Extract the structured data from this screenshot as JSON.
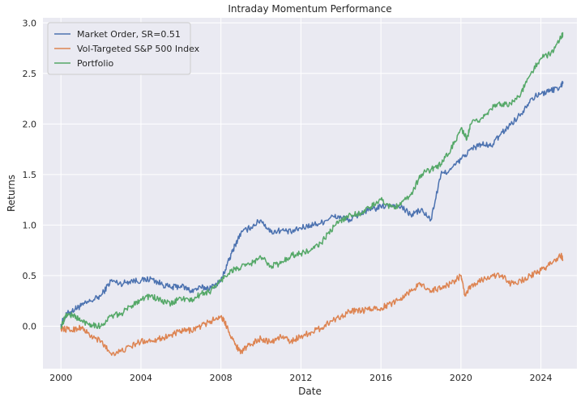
{
  "chart_data": {
    "type": "line",
    "title": "Intraday Momentum Performance",
    "xlabel": "Date",
    "ylabel": "Returns",
    "xlim": [
      1999.1,
      2025.8
    ],
    "ylim": [
      -0.42,
      3.05
    ],
    "x_ticks": [
      2000,
      2004,
      2008,
      2012,
      2016,
      2020,
      2024
    ],
    "x_tick_labels": [
      "2000",
      "2004",
      "2008",
      "2012",
      "2016",
      "2020",
      "2024"
    ],
    "y_ticks": [
      0.0,
      0.5,
      1.0,
      1.5,
      2.0,
      2.5,
      3.0
    ],
    "y_tick_labels": [
      "0.0",
      "0.5",
      "1.0",
      "1.5",
      "2.0",
      "2.5",
      "3.0"
    ],
    "grid": true,
    "legend_position": "top-left",
    "background": "#eaeaf2",
    "series": [
      {
        "name": "Market Order, SR=0.51",
        "color": "#4c72b0",
        "x": [
          2000.0,
          2000.3,
          2000.7,
          2001.0,
          2001.5,
          2002.0,
          2002.5,
          2003.0,
          2003.5,
          2004.0,
          2004.5,
          2005.0,
          2005.5,
          2006.0,
          2006.5,
          2007.0,
          2007.5,
          2008.0,
          2008.3,
          2008.7,
          2009.0,
          2009.5,
          2010.0,
          2010.5,
          2011.0,
          2011.5,
          2012.0,
          2012.5,
          2013.0,
          2013.5,
          2014.0,
          2014.5,
          2015.0,
          2015.5,
          2016.0,
          2016.5,
          2017.0,
          2017.5,
          2018.0,
          2018.5,
          2019.0,
          2019.5,
          2020.0,
          2020.5,
          2021.0,
          2021.5,
          2022.0,
          2022.5,
          2023.0,
          2023.5,
          2024.0,
          2024.5,
          2025.0,
          2025.1
        ],
        "y": [
          0.02,
          0.12,
          0.17,
          0.2,
          0.25,
          0.3,
          0.45,
          0.42,
          0.45,
          0.45,
          0.47,
          0.42,
          0.38,
          0.4,
          0.35,
          0.38,
          0.38,
          0.45,
          0.6,
          0.8,
          0.92,
          0.98,
          1.05,
          0.93,
          0.95,
          0.93,
          0.97,
          1.0,
          1.02,
          1.08,
          1.08,
          1.05,
          1.12,
          1.15,
          1.18,
          1.2,
          1.18,
          1.1,
          1.15,
          1.05,
          1.5,
          1.55,
          1.65,
          1.75,
          1.8,
          1.78,
          1.9,
          2.0,
          2.1,
          2.25,
          2.3,
          2.33,
          2.37,
          2.42
        ]
      },
      {
        "name": "Vol-Targeted S&P 500 Index",
        "color": "#dd8452",
        "x": [
          2000.0,
          2000.5,
          2001.0,
          2001.5,
          2002.0,
          2002.5,
          2003.0,
          2003.5,
          2004.0,
          2004.5,
          2005.0,
          2005.5,
          2006.0,
          2006.5,
          2007.0,
          2007.5,
          2008.0,
          2008.3,
          2008.7,
          2009.0,
          2009.5,
          2010.0,
          2010.5,
          2011.0,
          2011.5,
          2012.0,
          2012.5,
          2013.0,
          2013.5,
          2014.0,
          2014.5,
          2015.0,
          2015.5,
          2016.0,
          2016.5,
          2017.0,
          2017.5,
          2018.0,
          2018.5,
          2019.0,
          2019.5,
          2020.0,
          2020.2,
          2020.5,
          2021.0,
          2021.5,
          2022.0,
          2022.5,
          2023.0,
          2023.5,
          2024.0,
          2024.5,
          2025.0,
          2025.1
        ],
        "y": [
          -0.02,
          -0.04,
          -0.01,
          -0.1,
          -0.15,
          -0.27,
          -0.25,
          -0.2,
          -0.15,
          -0.14,
          -0.12,
          -0.09,
          -0.05,
          -0.04,
          0.0,
          0.05,
          0.1,
          0.0,
          -0.18,
          -0.25,
          -0.18,
          -0.12,
          -0.16,
          -0.1,
          -0.15,
          -0.1,
          -0.06,
          -0.02,
          0.05,
          0.1,
          0.15,
          0.15,
          0.17,
          0.18,
          0.22,
          0.28,
          0.35,
          0.42,
          0.35,
          0.38,
          0.42,
          0.5,
          0.3,
          0.4,
          0.45,
          0.5,
          0.5,
          0.42,
          0.45,
          0.5,
          0.55,
          0.62,
          0.7,
          0.66
        ]
      },
      {
        "name": "Portfolio",
        "color": "#55a868",
        "x": [
          2000.0,
          2000.3,
          2000.7,
          2001.0,
          2001.5,
          2002.0,
          2002.5,
          2003.0,
          2003.5,
          2004.0,
          2004.5,
          2005.0,
          2005.5,
          2006.0,
          2006.5,
          2007.0,
          2007.5,
          2008.0,
          2008.5,
          2009.0,
          2009.5,
          2010.0,
          2010.5,
          2011.0,
          2011.5,
          2012.0,
          2012.5,
          2013.0,
          2013.5,
          2014.0,
          2014.5,
          2015.0,
          2015.5,
          2016.0,
          2016.5,
          2017.0,
          2017.5,
          2018.0,
          2018.5,
          2019.0,
          2019.5,
          2020.0,
          2020.3,
          2020.5,
          2021.0,
          2021.5,
          2022.0,
          2022.5,
          2023.0,
          2023.5,
          2024.0,
          2024.5,
          2025.0,
          2025.1
        ],
        "y": [
          0.0,
          0.12,
          0.1,
          0.05,
          0.02,
          0.0,
          0.1,
          0.12,
          0.2,
          0.27,
          0.3,
          0.25,
          0.22,
          0.28,
          0.25,
          0.32,
          0.35,
          0.45,
          0.55,
          0.58,
          0.62,
          0.68,
          0.6,
          0.62,
          0.7,
          0.72,
          0.75,
          0.82,
          0.95,
          1.05,
          1.1,
          1.12,
          1.18,
          1.25,
          1.18,
          1.2,
          1.3,
          1.5,
          1.55,
          1.6,
          1.75,
          1.95,
          1.85,
          2.0,
          2.05,
          2.15,
          2.2,
          2.2,
          2.3,
          2.5,
          2.65,
          2.7,
          2.85,
          2.9
        ]
      }
    ]
  }
}
